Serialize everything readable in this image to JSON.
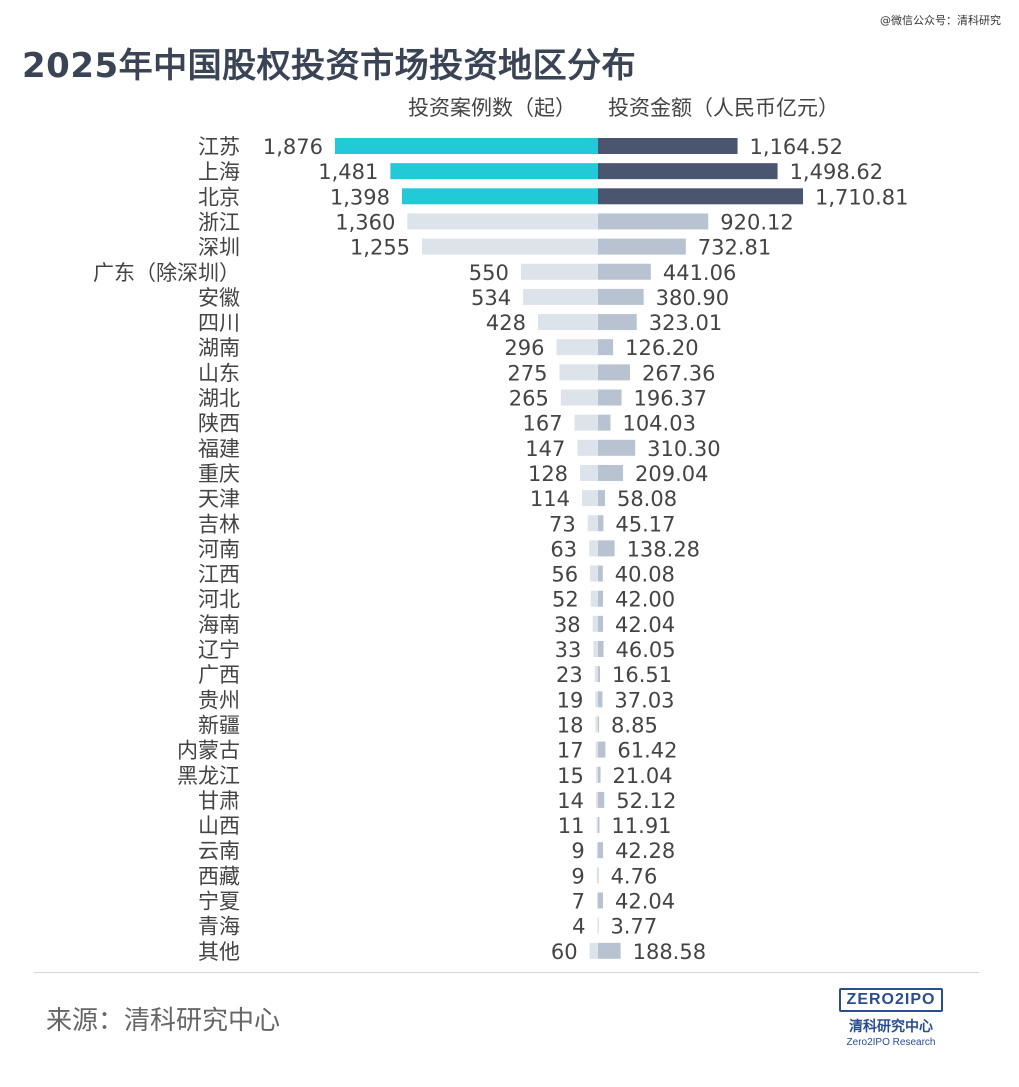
{
  "watermark": "@微信公众号：清科研究",
  "source": "来源：清科研究中心",
  "logo": {
    "mark": "ZERO2IPO",
    "cn": "清科研究中心",
    "en": "Zero2IPO Research"
  },
  "colors": {
    "left_highlight": "#22c9d6",
    "right_highlight": "#4a5670",
    "left_other": "#dde3ea",
    "right_other": "#b8c2d0",
    "text": "#444444"
  },
  "chart_data": {
    "type": "bar",
    "title": "2025年中国股权投资市场投资地区分布",
    "layout": "butterfly",
    "highlight_count": 3,
    "categories": [
      "江苏",
      "上海",
      "北京",
      "浙江",
      "深圳",
      "广东（除深圳）",
      "安徽",
      "四川",
      "湖南",
      "山东",
      "湖北",
      "陕西",
      "福建",
      "重庆",
      "天津",
      "吉林",
      "河南",
      "江西",
      "河北",
      "海南",
      "辽宁",
      "广西",
      "贵州",
      "新疆",
      "内蒙古",
      "黑龙江",
      "甘肃",
      "山西",
      "云南",
      "西藏",
      "宁夏",
      "青海",
      "其他"
    ],
    "series": [
      {
        "name": "投资案例数（起）",
        "values": [
          1876,
          1481,
          1398,
          1360,
          1255,
          550,
          534,
          428,
          296,
          275,
          265,
          167,
          147,
          128,
          114,
          73,
          63,
          56,
          52,
          38,
          33,
          23,
          19,
          18,
          17,
          15,
          14,
          11,
          9,
          9,
          7,
          4,
          60
        ],
        "labels": [
          "1,876",
          "1,481",
          "1,398",
          "1,360",
          "1,255",
          "550",
          "534",
          "428",
          "296",
          "275",
          "265",
          "167",
          "147",
          "128",
          "114",
          "73",
          "63",
          "56",
          "52",
          "38",
          "33",
          "23",
          "19",
          "18",
          "17",
          "15",
          "14",
          "11",
          "9",
          "9",
          "7",
          "4",
          "60"
        ]
      },
      {
        "name": "投资金额（人民币亿元）",
        "values": [
          1164.52,
          1498.62,
          1710.81,
          920.12,
          732.81,
          441.06,
          380.9,
          323.01,
          126.2,
          267.36,
          196.37,
          104.03,
          310.3,
          209.04,
          58.08,
          45.17,
          138.28,
          40.08,
          42.0,
          42.04,
          46.05,
          16.51,
          37.03,
          8.85,
          61.42,
          21.04,
          52.12,
          11.91,
          42.28,
          4.76,
          42.04,
          3.77,
          188.58
        ],
        "labels": [
          "1,164.52",
          "1,498.62",
          "1,710.81",
          "920.12",
          "732.81",
          "441.06",
          "380.90",
          "323.01",
          "126.20",
          "267.36",
          "196.37",
          "104.03",
          "310.30",
          "209.04",
          "58.08",
          "45.17",
          "138.28",
          "40.08",
          "42.00",
          "42.04",
          "46.05",
          "16.51",
          "37.03",
          "8.85",
          "61.42",
          "21.04",
          "52.12",
          "11.91",
          "42.28",
          "4.76",
          "42.04",
          "3.77",
          "188.58"
        ]
      }
    ]
  }
}
